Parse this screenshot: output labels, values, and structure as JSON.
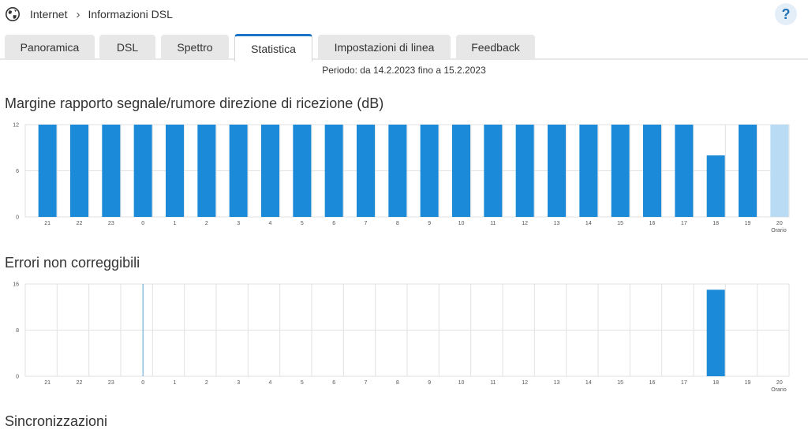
{
  "breadcrumb": {
    "root": "Internet",
    "separator": "›",
    "current": "Informazioni DSL",
    "icon": "globe-icon"
  },
  "help": {
    "label": "?",
    "icon": "help-icon"
  },
  "tabs": [
    {
      "label": "Panoramica",
      "active": false
    },
    {
      "label": "DSL",
      "active": false
    },
    {
      "label": "Spettro",
      "active": false
    },
    {
      "label": "Statistica",
      "active": true
    },
    {
      "label": "Impostazioni di linea",
      "active": false
    },
    {
      "label": "Feedback",
      "active": false
    }
  ],
  "period": "Periodo: da 14.2.2023 fino a 15.2.2023",
  "colors": {
    "bar": "#1a8ad9",
    "bar_current": "#b9dcf4",
    "accent": "#1a75c9",
    "grid": "#e2e2e2"
  },
  "sections": {
    "snr_title": "Margine rapporto segnale/rumore direzione di ricezione (dB)",
    "errors_title": "Errori non correggibili",
    "sync_title": "Sincronizzazioni"
  },
  "chart_data": [
    {
      "type": "bar",
      "title": "Margine rapporto segnale/rumore direzione di ricezione (dB)",
      "categories": [
        "21",
        "22",
        "23",
        "0",
        "1",
        "2",
        "3",
        "4",
        "5",
        "6",
        "7",
        "8",
        "9",
        "10",
        "11",
        "12",
        "13",
        "14",
        "15",
        "16",
        "17",
        "18",
        "19",
        "20"
      ],
      "values": [
        12,
        12,
        12,
        12,
        12,
        12,
        12,
        12,
        12,
        12,
        12,
        12,
        12,
        12,
        12,
        12,
        12,
        12,
        12,
        12,
        12,
        8,
        12,
        12
      ],
      "current_index": 23,
      "yticks": [
        "0",
        "6",
        "12"
      ],
      "ylim": [
        0,
        12
      ],
      "xlabel": "Orario",
      "grid": true
    },
    {
      "type": "bar",
      "title": "Errori non correggibili",
      "categories": [
        "21",
        "22",
        "23",
        "0",
        "1",
        "2",
        "3",
        "4",
        "5",
        "6",
        "7",
        "8",
        "9",
        "10",
        "11",
        "12",
        "13",
        "14",
        "15",
        "16",
        "17",
        "18",
        "19",
        "20"
      ],
      "values": [
        0,
        0,
        0,
        0,
        0,
        0,
        0,
        0,
        0,
        0,
        0,
        0,
        0,
        0,
        0,
        0,
        0,
        0,
        0,
        0,
        0,
        15,
        0,
        0
      ],
      "current_index": 23,
      "day_boundary_index": 3,
      "yticks": [
        "0",
        "8",
        "16"
      ],
      "ylim": [
        0,
        16
      ],
      "xlabel": "Orario",
      "grid": true
    }
  ]
}
